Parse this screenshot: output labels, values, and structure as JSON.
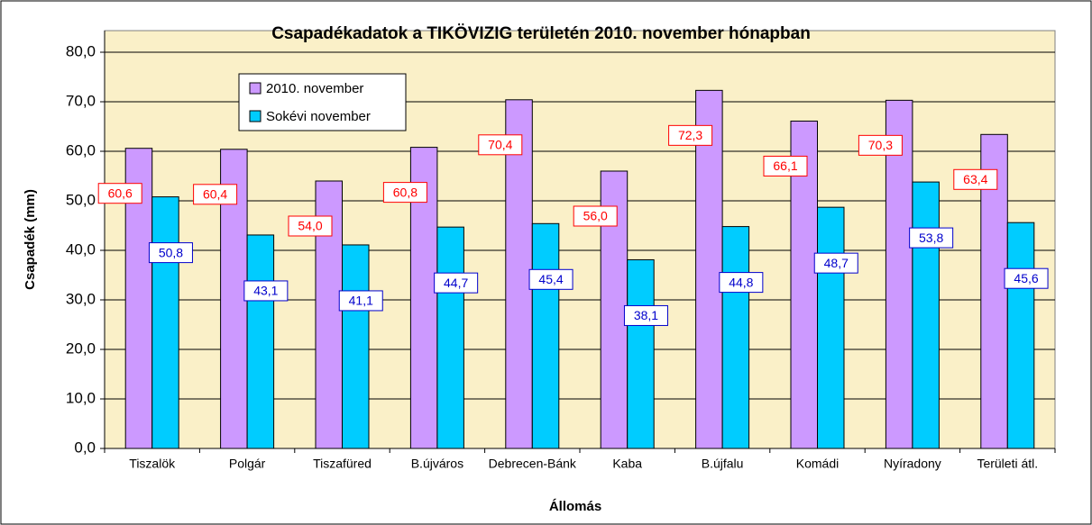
{
  "chart_data": {
    "type": "bar",
    "title": "Csapadékadatok a TIKÖVIZIG területén 2010. november hónapban",
    "x_label": "Állomás",
    "y_label": "Csapadék (mm)",
    "categories": [
      "Tiszalök",
      "Polgár",
      "Tiszafüred",
      "B.újváros",
      "Debrecen-Bánk",
      "Kaba",
      "B.újfalu",
      "Komádi",
      "Nyíradony",
      "Területi átl."
    ],
    "series": [
      {
        "name": "2010. november",
        "color": "#CC99FF",
        "label_color": "#FF0000",
        "values": [
          60.6,
          60.4,
          54.0,
          60.8,
          70.4,
          56.0,
          72.3,
          66.1,
          70.3,
          63.4
        ],
        "value_labels": [
          "60,6",
          "60,4",
          "54,0",
          "60,8",
          "70,4",
          "56,0",
          "72,3",
          "66,1",
          "70,3",
          "63,4"
        ]
      },
      {
        "name": "Sokévi november",
        "color": "#00CCFF",
        "label_color": "#0000CC",
        "values": [
          50.8,
          43.1,
          41.1,
          44.7,
          45.4,
          38.1,
          44.8,
          48.7,
          53.8,
          45.6
        ],
        "value_labels": [
          "50,8",
          "43,1",
          "41,1",
          "44,7",
          "45,4",
          "38,1",
          "44,8",
          "48,7",
          "53,8",
          "45,6"
        ]
      }
    ],
    "ylim": [
      0,
      80
    ],
    "yticks": [
      {
        "value": 0,
        "label": "0,0"
      },
      {
        "value": 10,
        "label": "10,0"
      },
      {
        "value": 20,
        "label": "20,0"
      },
      {
        "value": 30,
        "label": "30,0"
      },
      {
        "value": 40,
        "label": "40,0"
      },
      {
        "value": 50,
        "label": "50,0"
      },
      {
        "value": 60,
        "label": "60,0"
      },
      {
        "value": 70,
        "label": "70,0"
      },
      {
        "value": 80,
        "label": "80,0"
      }
    ],
    "grid": true,
    "legend": "upper left",
    "background": "#FAF0C8"
  }
}
